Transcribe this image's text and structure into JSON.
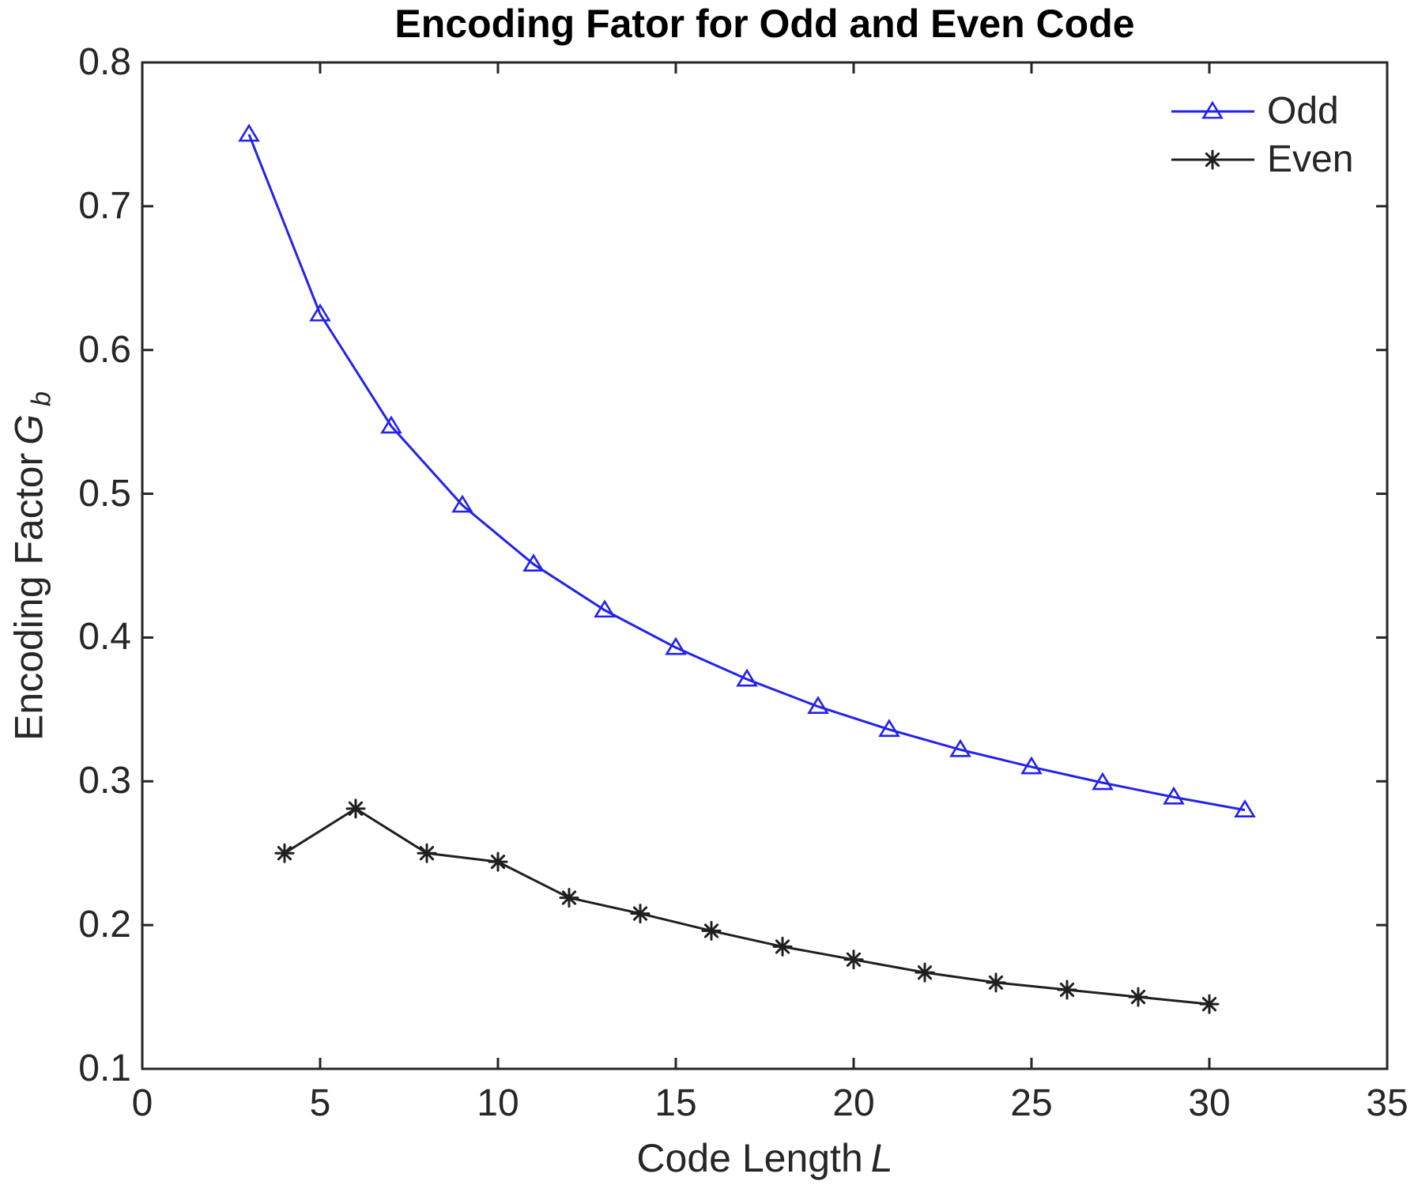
{
  "figure": {
    "background": "#ffffff",
    "title": "Encoding Fator for Odd and Even Code"
  },
  "chart_data": {
    "type": "line",
    "title": "Encoding Fator for Odd and Even Code",
    "xlabel": "Code Length L",
    "ylabel": "Encoding Factor G_b",
    "xlabel_parts": {
      "text": "Code Length",
      "var": "L"
    },
    "ylabel_parts": {
      "text": "Encoding Factor",
      "var": "G",
      "sub": "b"
    },
    "xlim": [
      0,
      35
    ],
    "ylim": [
      0.1,
      0.8
    ],
    "xticks": [
      0,
      5,
      10,
      15,
      20,
      25,
      30,
      35
    ],
    "yticks": [
      0.1,
      0.2,
      0.3,
      0.4,
      0.5,
      0.6,
      0.7,
      0.8
    ],
    "xtick_labels": [
      "0",
      "5",
      "10",
      "15",
      "20",
      "25",
      "30",
      "35"
    ],
    "ytick_labels": [
      "0.1",
      "0.2",
      "0.3",
      "0.4",
      "0.5",
      "0.6",
      "0.7",
      "0.8"
    ],
    "grid": false,
    "legend_position": "upper-right",
    "axis_color": "#262626",
    "series": [
      {
        "name": "Odd",
        "color": "#2222ee",
        "marker": "triangle-up",
        "x": [
          3,
          5,
          7,
          9,
          11,
          13,
          15,
          17,
          19,
          21,
          23,
          25,
          27,
          29,
          31
        ],
        "y": [
          0.75,
          0.625,
          0.547,
          0.492,
          0.451,
          0.419,
          0.393,
          0.371,
          0.352,
          0.336,
          0.322,
          0.31,
          0.299,
          0.289,
          0.28
        ]
      },
      {
        "name": "Even",
        "color": "#1f1f1f",
        "marker": "asterisk",
        "x": [
          4,
          6,
          8,
          10,
          12,
          14,
          16,
          18,
          20,
          22,
          24,
          26,
          28,
          30
        ],
        "y": [
          0.25,
          0.281,
          0.25,
          0.244,
          0.219,
          0.208,
          0.196,
          0.185,
          0.176,
          0.167,
          0.16,
          0.155,
          0.15,
          0.145
        ]
      }
    ]
  }
}
